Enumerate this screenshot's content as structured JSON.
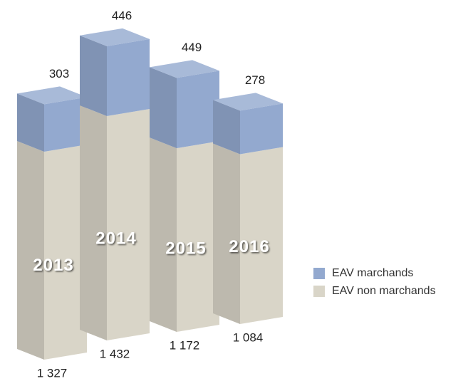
{
  "chart_data": {
    "type": "bar3d_stacked",
    "categories": [
      "2013",
      "2014",
      "2015",
      "2016"
    ],
    "series": [
      {
        "name": "EAV non marchands",
        "color": "#d9d5c8",
        "values": [
          1327,
          1432,
          1172,
          1084
        ],
        "value_labels": [
          "1 327",
          "1 432",
          "1 172",
          "1 084"
        ]
      },
      {
        "name": "EAV marchands",
        "color": "#93a9cf",
        "values": [
          303,
          446,
          449,
          278
        ]
      }
    ]
  }
}
